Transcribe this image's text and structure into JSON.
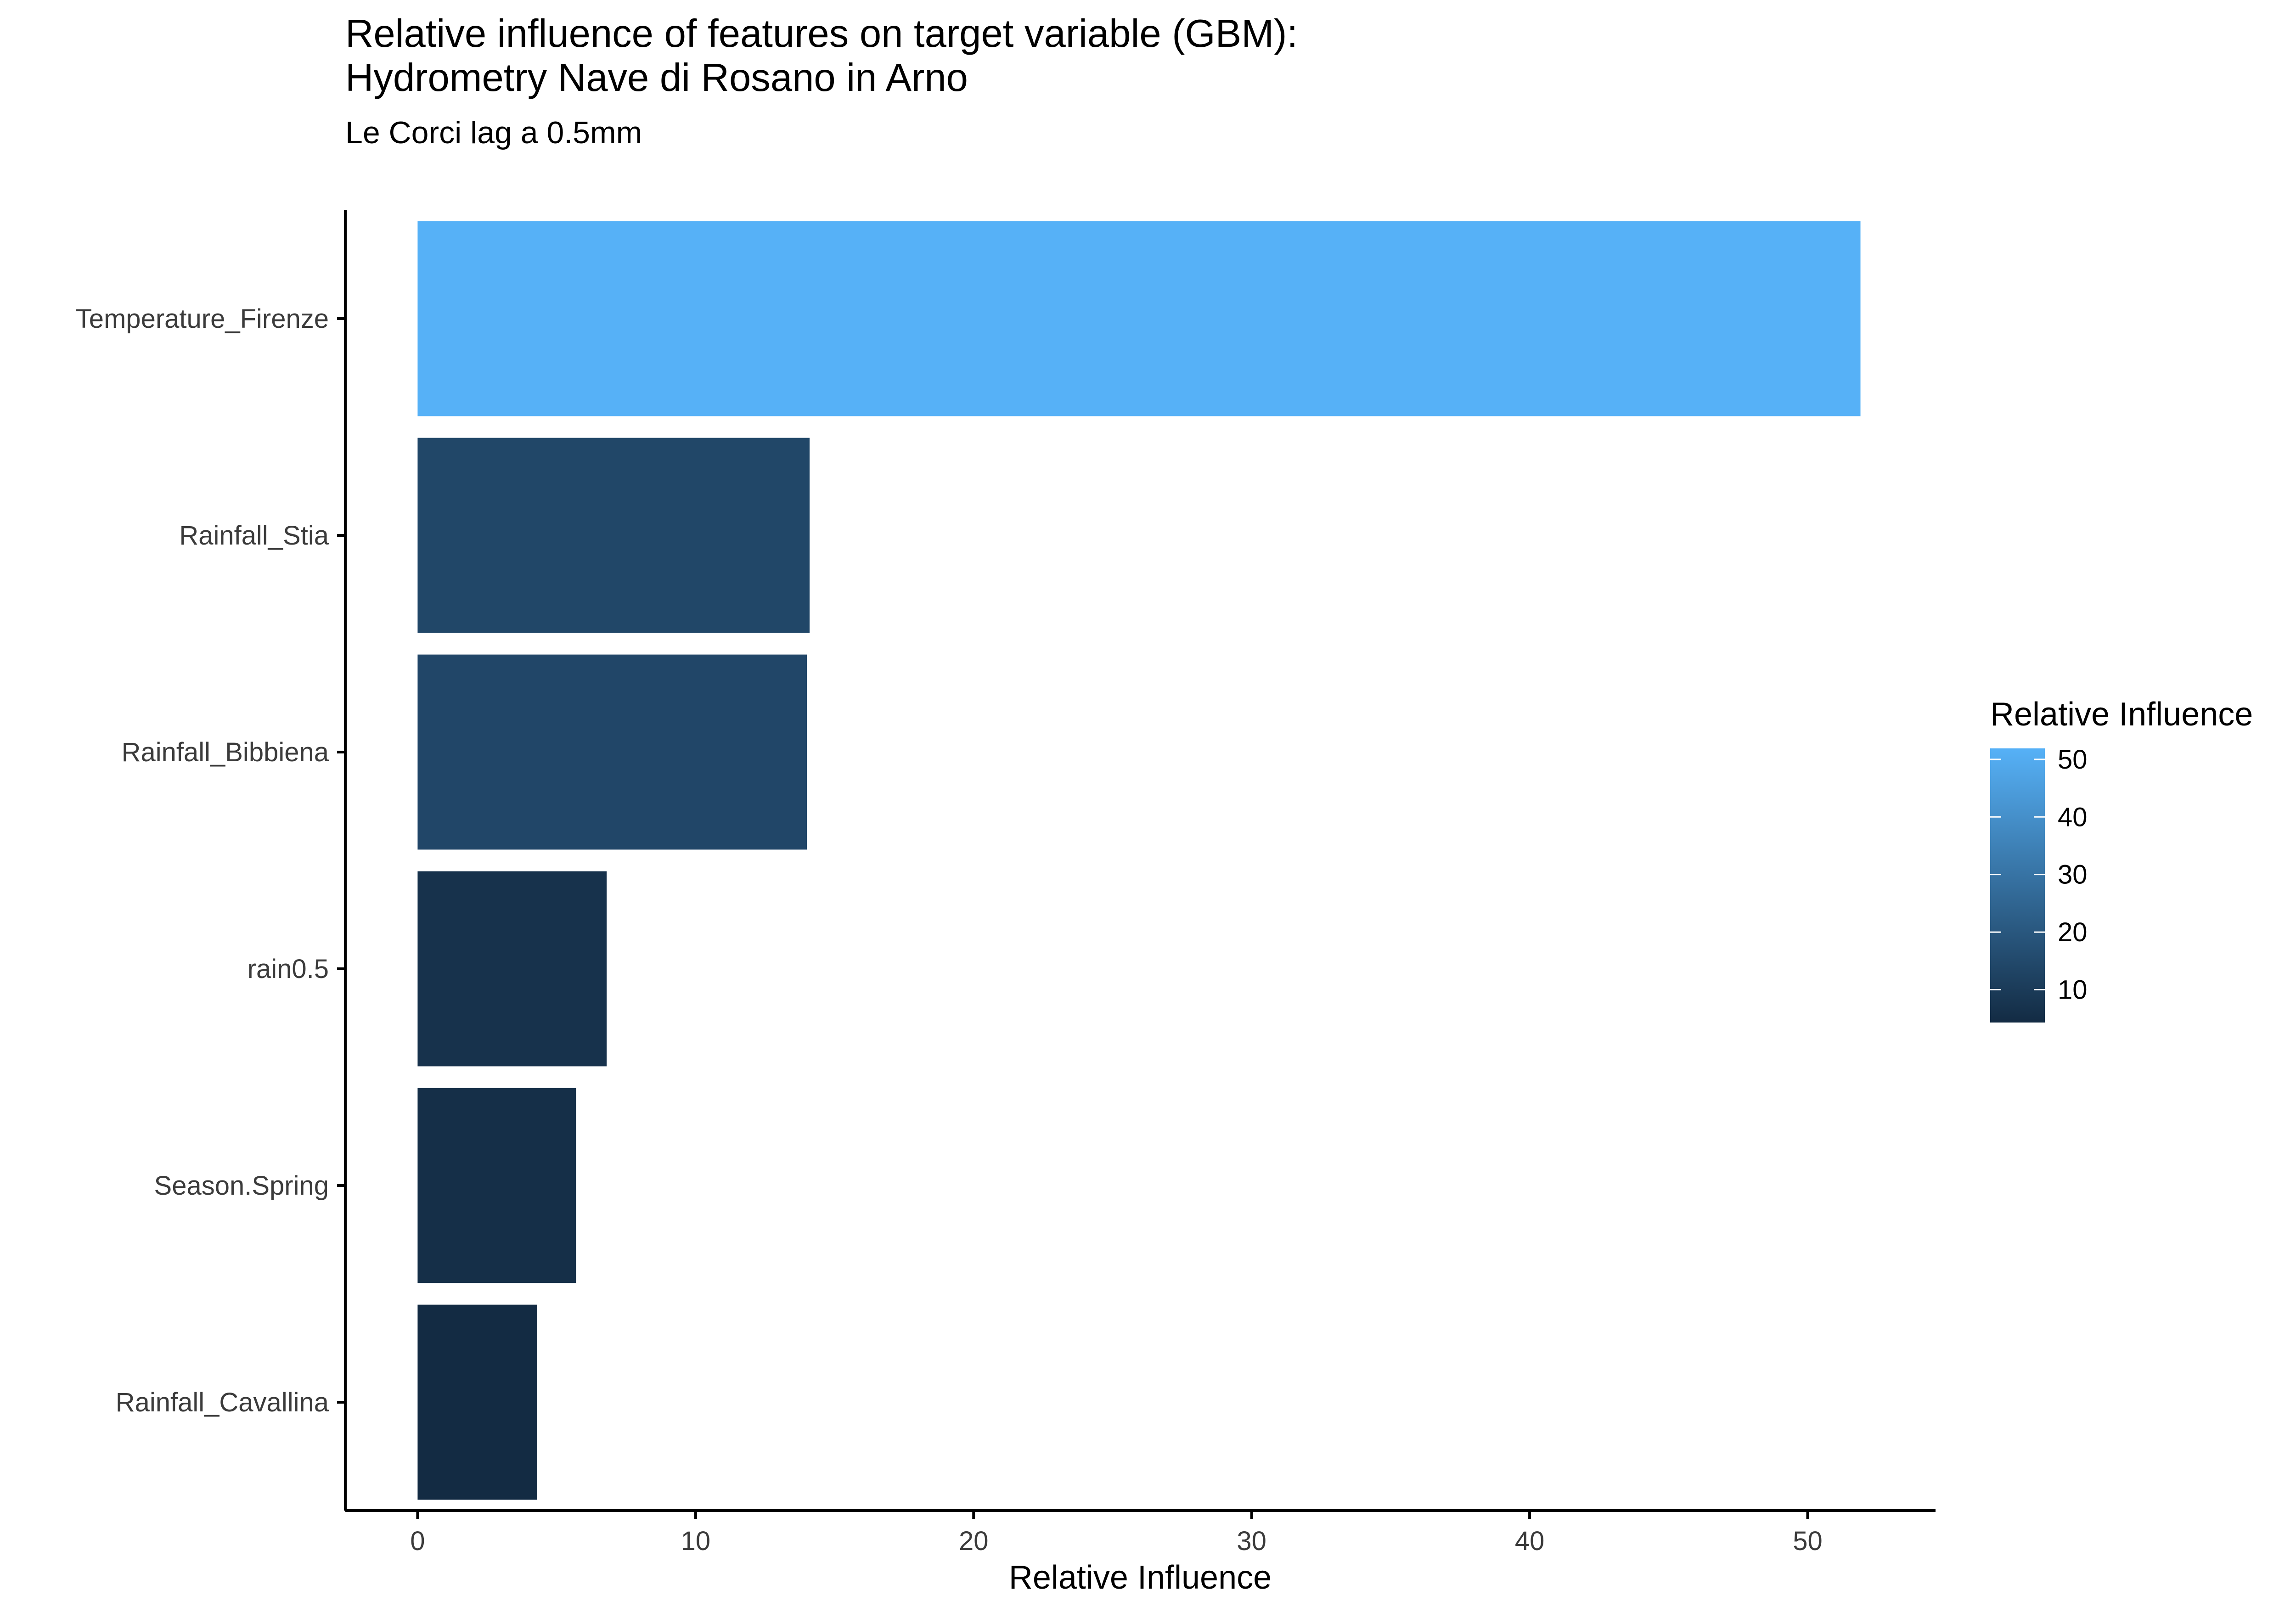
{
  "chart_data": {
    "type": "bar",
    "orientation": "horizontal",
    "title": "Relative influence of features on target variable (GBM):",
    "title_line2": "Hydrometry Nave di Rosano in Arno",
    "subtitle": "Le Corci lag a 0.5mm",
    "xlabel": "Relative Influence",
    "ylabel": "",
    "categories": [
      "Temperature_Firenze",
      "Rainfall_Stia",
      "Rainfall_Bibbiena",
      "rain0.5",
      "Season.Spring",
      "Rainfall_Cavallina"
    ],
    "values": [
      51.9,
      14.1,
      14.0,
      6.8,
      5.7,
      4.3
    ],
    "xlim": [
      -2.6,
      54.6
    ],
    "xticks": [
      0,
      10,
      20,
      30,
      40,
      50
    ],
    "grid": false,
    "legend": {
      "title": "Relative Influence",
      "placement": "right",
      "type": "colorbar",
      "ticks": [
        10,
        20,
        30,
        40,
        50
      ],
      "range": [
        4.3,
        51.9
      ],
      "color_low": "#132B43",
      "color_high": "#56B1F7"
    }
  }
}
